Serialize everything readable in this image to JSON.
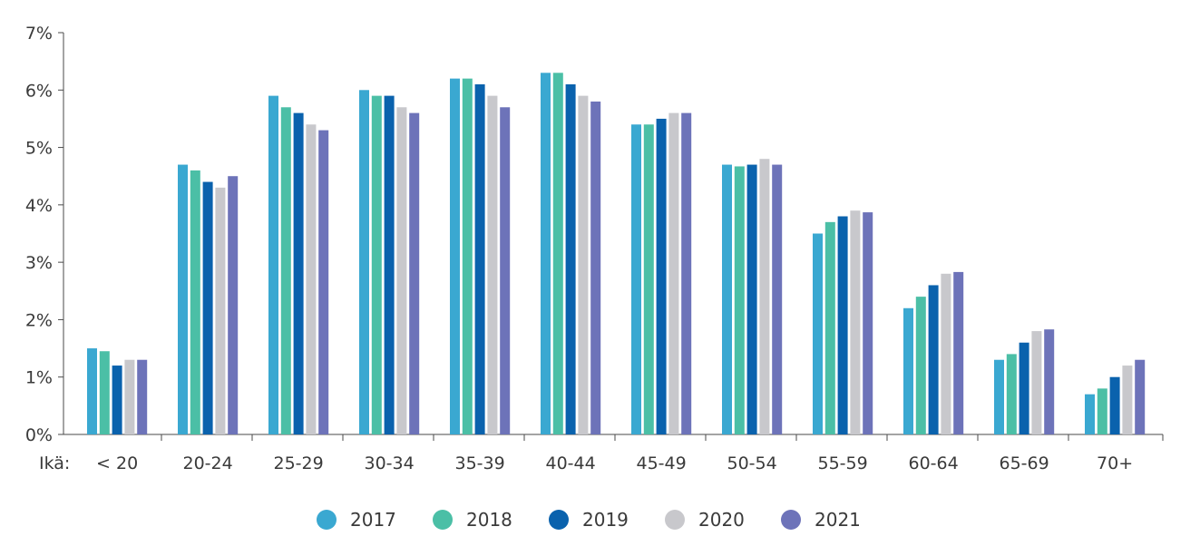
{
  "chart_data": {
    "type": "bar",
    "title": "",
    "xlabel": "Ikä:",
    "ylabel": "",
    "ylim": [
      0,
      7
    ],
    "yticks": [
      "0%",
      "1%",
      "2%",
      "3%",
      "4%",
      "5%",
      "6%",
      "7%"
    ],
    "grid": false,
    "legend_position": "bottom-center",
    "categories": [
      "< 20",
      "20-24",
      "25-29",
      "30-34",
      "35-39",
      "40-44",
      "45-49",
      "50-54",
      "55-59",
      "60-64",
      "65-69",
      "70+"
    ],
    "series": [
      {
        "name": "2017",
        "color": "#3aa8d1",
        "values": [
          1.5,
          4.7,
          5.9,
          6.0,
          6.2,
          6.3,
          5.4,
          4.7,
          3.5,
          2.2,
          1.3,
          0.7
        ]
      },
      {
        "name": "2018",
        "color": "#4bbfa6",
        "values": [
          1.45,
          4.6,
          5.7,
          5.9,
          6.2,
          6.3,
          5.4,
          4.67,
          3.7,
          2.4,
          1.4,
          0.8
        ]
      },
      {
        "name": "2019",
        "color": "#0a62ad",
        "values": [
          1.2,
          4.4,
          5.6,
          5.9,
          6.1,
          6.1,
          5.5,
          4.7,
          3.8,
          2.6,
          1.6,
          1.0
        ]
      },
      {
        "name": "2020",
        "color": "#c8c8cc",
        "values": [
          1.3,
          4.3,
          5.4,
          5.7,
          5.9,
          5.9,
          5.6,
          4.8,
          3.9,
          2.8,
          1.8,
          1.2
        ]
      },
      {
        "name": "2021",
        "color": "#6d73b9",
        "values": [
          1.3,
          4.5,
          5.3,
          5.6,
          5.7,
          5.8,
          5.6,
          4.7,
          3.87,
          2.83,
          1.83,
          1.3
        ]
      }
    ]
  }
}
